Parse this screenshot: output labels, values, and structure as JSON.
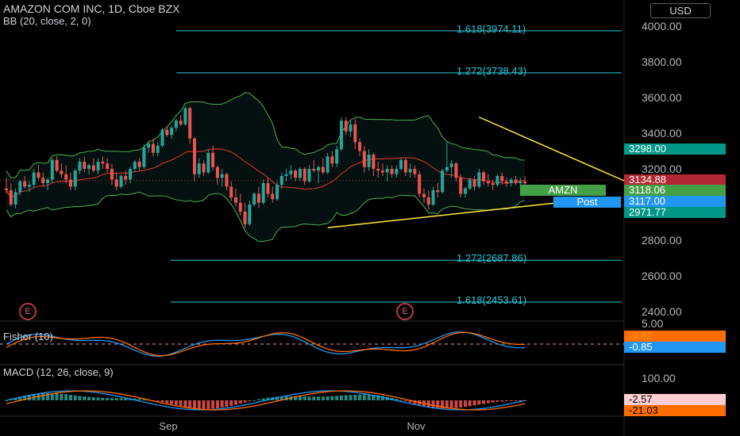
{
  "header": {
    "title": "AMAZON COM INC, 1D, Cboe BZX",
    "bb_label": "BB (20, close, 2, 0)",
    "currency_button": "USD"
  },
  "events": [
    "E",
    "E"
  ],
  "symbol_tag": "AMZN",
  "post_tag": "Post",
  "fisher": {
    "label": "Fisher (10)",
    "axis_tick": "5.00",
    "badges": [
      {
        "text": "-0.82",
        "color": "#ff6d00",
        "text_color": "#ff9800"
      },
      {
        "text": "-0.85",
        "color": "#2196f3",
        "text_color": "#ffffff"
      }
    ]
  },
  "macd": {
    "label": "MACD (12, 26, close, 9)",
    "axis_tick": "100.00",
    "badges": [
      {
        "text": "-2.57",
        "color": "#ffcdd2",
        "text_color": "#000000"
      },
      {
        "text": "-21.03",
        "color": "#ff6d00",
        "text_color": "#000000"
      }
    ]
  },
  "price_badges": [
    {
      "text": "3298.00",
      "value": 3298,
      "color": "#009688",
      "text_color": "#ffffff"
    },
    {
      "text": "3134.88",
      "value": 3134.88,
      "color": "#b22833",
      "text_color": "#ffffff"
    },
    {
      "text": "3118.06",
      "value": 3118.06,
      "color": "#43a047",
      "text_color": "#ffffff"
    },
    {
      "text": "3117.00",
      "value": 3117,
      "color": "#2196f3",
      "text_color": "#ffffff"
    },
    {
      "text": "2971.77",
      "value": 2971.77,
      "color": "#009688",
      "text_color": "#ffffff"
    }
  ],
  "colors": {
    "up": "#26a69a",
    "down": "#ef5350",
    "triangle": "#ffeb3b",
    "fib": "#26c6da",
    "bb": "#4caf50",
    "basis": "#e53935",
    "fisher_a": "#2196f3",
    "fisher_b": "#ff6d00",
    "macd": "#2196f3",
    "signal": "#ff6d00"
  },
  "chart_data": {
    "type": "candlestick",
    "title": "AMAZON COM INC, 1D, Cboe BZX",
    "x_tick_labels": [
      "Sep",
      "Nov"
    ],
    "y_tick_labels": [
      "4000.00",
      "3800.00",
      "3600.00",
      "3400.00",
      "3200.00",
      "3000.00",
      "2800.00",
      "2600.00",
      "2400.00"
    ],
    "ylim": [
      2380,
      4080
    ],
    "fib_levels": [
      {
        "label": "1.618(3974.11)",
        "value": 3974.11
      },
      {
        "label": "1.272(3738.43)",
        "value": 3738.43
      },
      {
        "label": "1.272(2687.86)",
        "value": 2687.86
      },
      {
        "label": "1.618(2453.61)",
        "value": 2453.61
      }
    ],
    "triangle": {
      "upper": [
        [
          103,
          3490
        ],
        [
          195,
          3160
        ]
      ],
      "lower": [
        [
          70,
          2870
        ],
        [
          172,
          3060
        ]
      ]
    },
    "candles": [
      [
        3090,
        3150,
        3060,
        3080
      ],
      [
        3080,
        3120,
        2990,
        3000
      ],
      [
        3000,
        3090,
        2980,
        3070
      ],
      [
        3070,
        3140,
        3050,
        3130
      ],
      [
        3130,
        3160,
        3090,
        3100
      ],
      [
        3100,
        3130,
        3070,
        3110
      ],
      [
        3110,
        3200,
        3090,
        3180
      ],
      [
        3180,
        3220,
        3140,
        3150
      ],
      [
        3150,
        3180,
        3100,
        3120
      ],
      [
        3120,
        3150,
        3080,
        3140
      ],
      [
        3140,
        3260,
        3120,
        3250
      ],
      [
        3250,
        3270,
        3180,
        3190
      ],
      [
        3190,
        3230,
        3150,
        3170
      ],
      [
        3170,
        3220,
        3120,
        3140
      ],
      [
        3140,
        3180,
        3080,
        3100
      ],
      [
        3100,
        3200,
        3080,
        3190
      ],
      [
        3190,
        3260,
        3170,
        3240
      ],
      [
        3240,
        3270,
        3180,
        3200
      ],
      [
        3200,
        3230,
        3170,
        3220
      ],
      [
        3220,
        3260,
        3180,
        3190
      ],
      [
        3190,
        3260,
        3170,
        3240
      ],
      [
        3240,
        3270,
        3200,
        3230
      ],
      [
        3230,
        3260,
        3180,
        3200
      ],
      [
        3200,
        3230,
        3110,
        3140
      ],
      [
        3140,
        3180,
        3080,
        3100
      ],
      [
        3100,
        3170,
        3090,
        3160
      ],
      [
        3160,
        3190,
        3110,
        3140
      ],
      [
        3140,
        3210,
        3120,
        3200
      ],
      [
        3200,
        3250,
        3180,
        3240
      ],
      [
        3240,
        3260,
        3190,
        3210
      ],
      [
        3210,
        3340,
        3200,
        3320
      ],
      [
        3320,
        3360,
        3290,
        3340
      ],
      [
        3340,
        3370,
        3270,
        3290
      ],
      [
        3290,
        3350,
        3270,
        3330
      ],
      [
        3330,
        3430,
        3320,
        3420
      ],
      [
        3420,
        3440,
        3380,
        3390
      ],
      [
        3390,
        3440,
        3370,
        3430
      ],
      [
        3430,
        3480,
        3410,
        3470
      ],
      [
        3470,
        3500,
        3440,
        3450
      ],
      [
        3450,
        3550,
        3440,
        3540
      ],
      [
        3540,
        3550,
        3340,
        3370
      ],
      [
        3370,
        3380,
        3130,
        3170
      ],
      [
        3170,
        3260,
        3150,
        3230
      ],
      [
        3230,
        3250,
        3160,
        3180
      ],
      [
        3180,
        3310,
        3170,
        3290
      ],
      [
        3290,
        3330,
        3190,
        3210
      ],
      [
        3210,
        3220,
        3110,
        3150
      ],
      [
        3150,
        3200,
        3100,
        3170
      ],
      [
        3170,
        3180,
        3080,
        3100
      ],
      [
        3100,
        3130,
        3020,
        3040
      ],
      [
        3040,
        3090,
        2990,
        3010
      ],
      [
        3010,
        3060,
        2940,
        2960
      ],
      [
        2960,
        3010,
        2870,
        2890
      ],
      [
        2890,
        3020,
        2880,
        3000
      ],
      [
        3000,
        3070,
        2990,
        3060
      ],
      [
        3060,
        3100,
        2980,
        3010
      ],
      [
        3010,
        3140,
        3000,
        3120
      ],
      [
        3120,
        3150,
        3040,
        3060
      ],
      [
        3060,
        3100,
        3010,
        3030
      ],
      [
        3030,
        3130,
        3020,
        3110
      ],
      [
        3110,
        3180,
        3090,
        3160
      ],
      [
        3160,
        3200,
        3130,
        3170
      ],
      [
        3170,
        3220,
        3140,
        3190
      ],
      [
        3190,
        3200,
        3130,
        3150
      ],
      [
        3150,
        3210,
        3130,
        3200
      ],
      [
        3200,
        3210,
        3110,
        3130
      ],
      [
        3130,
        3220,
        3120,
        3200
      ],
      [
        3200,
        3250,
        3180,
        3190
      ],
      [
        3190,
        3220,
        3120,
        3210
      ],
      [
        3210,
        3260,
        3170,
        3180
      ],
      [
        3180,
        3290,
        3170,
        3270
      ],
      [
        3270,
        3300,
        3210,
        3230
      ],
      [
        3230,
        3330,
        3210,
        3310
      ],
      [
        3310,
        3490,
        3300,
        3470
      ],
      [
        3470,
        3490,
        3390,
        3410
      ],
      [
        3410,
        3470,
        3380,
        3450
      ],
      [
        3450,
        3480,
        3310,
        3350
      ],
      [
        3350,
        3370,
        3270,
        3300
      ],
      [
        3300,
        3330,
        3180,
        3210
      ],
      [
        3210,
        3310,
        3190,
        3280
      ],
      [
        3280,
        3290,
        3160,
        3200
      ],
      [
        3200,
        3240,
        3150,
        3190
      ],
      [
        3190,
        3230,
        3160,
        3180
      ],
      [
        3180,
        3220,
        3130,
        3200
      ],
      [
        3200,
        3220,
        3150,
        3170
      ],
      [
        3170,
        3220,
        3150,
        3200
      ],
      [
        3200,
        3260,
        3190,
        3250
      ],
      [
        3250,
        3260,
        3160,
        3180
      ],
      [
        3180,
        3230,
        3150,
        3200
      ],
      [
        3200,
        3220,
        3150,
        3170
      ],
      [
        3170,
        3190,
        3040,
        3060
      ],
      [
        3060,
        3090,
        3010,
        3040
      ],
      [
        3040,
        3080,
        2970,
        3000
      ],
      [
        3000,
        3100,
        2990,
        3080
      ],
      [
        3080,
        3120,
        3040,
        3070
      ],
      [
        3070,
        3200,
        3060,
        3190
      ],
      [
        3190,
        3350,
        3180,
        3210
      ],
      [
        3210,
        3250,
        3150,
        3230
      ],
      [
        3230,
        3240,
        3130,
        3150
      ],
      [
        3150,
        3170,
        3040,
        3060
      ],
      [
        3060,
        3100,
        3040,
        3090
      ],
      [
        3090,
        3150,
        3080,
        3140
      ],
      [
        3140,
        3160,
        3080,
        3100
      ],
      [
        3100,
        3200,
        3090,
        3180
      ],
      [
        3180,
        3190,
        3110,
        3130
      ],
      [
        3130,
        3170,
        3100,
        3120
      ],
      [
        3120,
        3140,
        3080,
        3110
      ],
      [
        3110,
        3170,
        3100,
        3160
      ],
      [
        3160,
        3180,
        3110,
        3130
      ],
      [
        3130,
        3150,
        3100,
        3120
      ],
      [
        3120,
        3150,
        3100,
        3140
      ],
      [
        3140,
        3160,
        3110,
        3120
      ],
      [
        3120,
        3150,
        3090,
        3130
      ],
      [
        3130,
        3160,
        3110,
        3118
      ]
    ]
  }
}
